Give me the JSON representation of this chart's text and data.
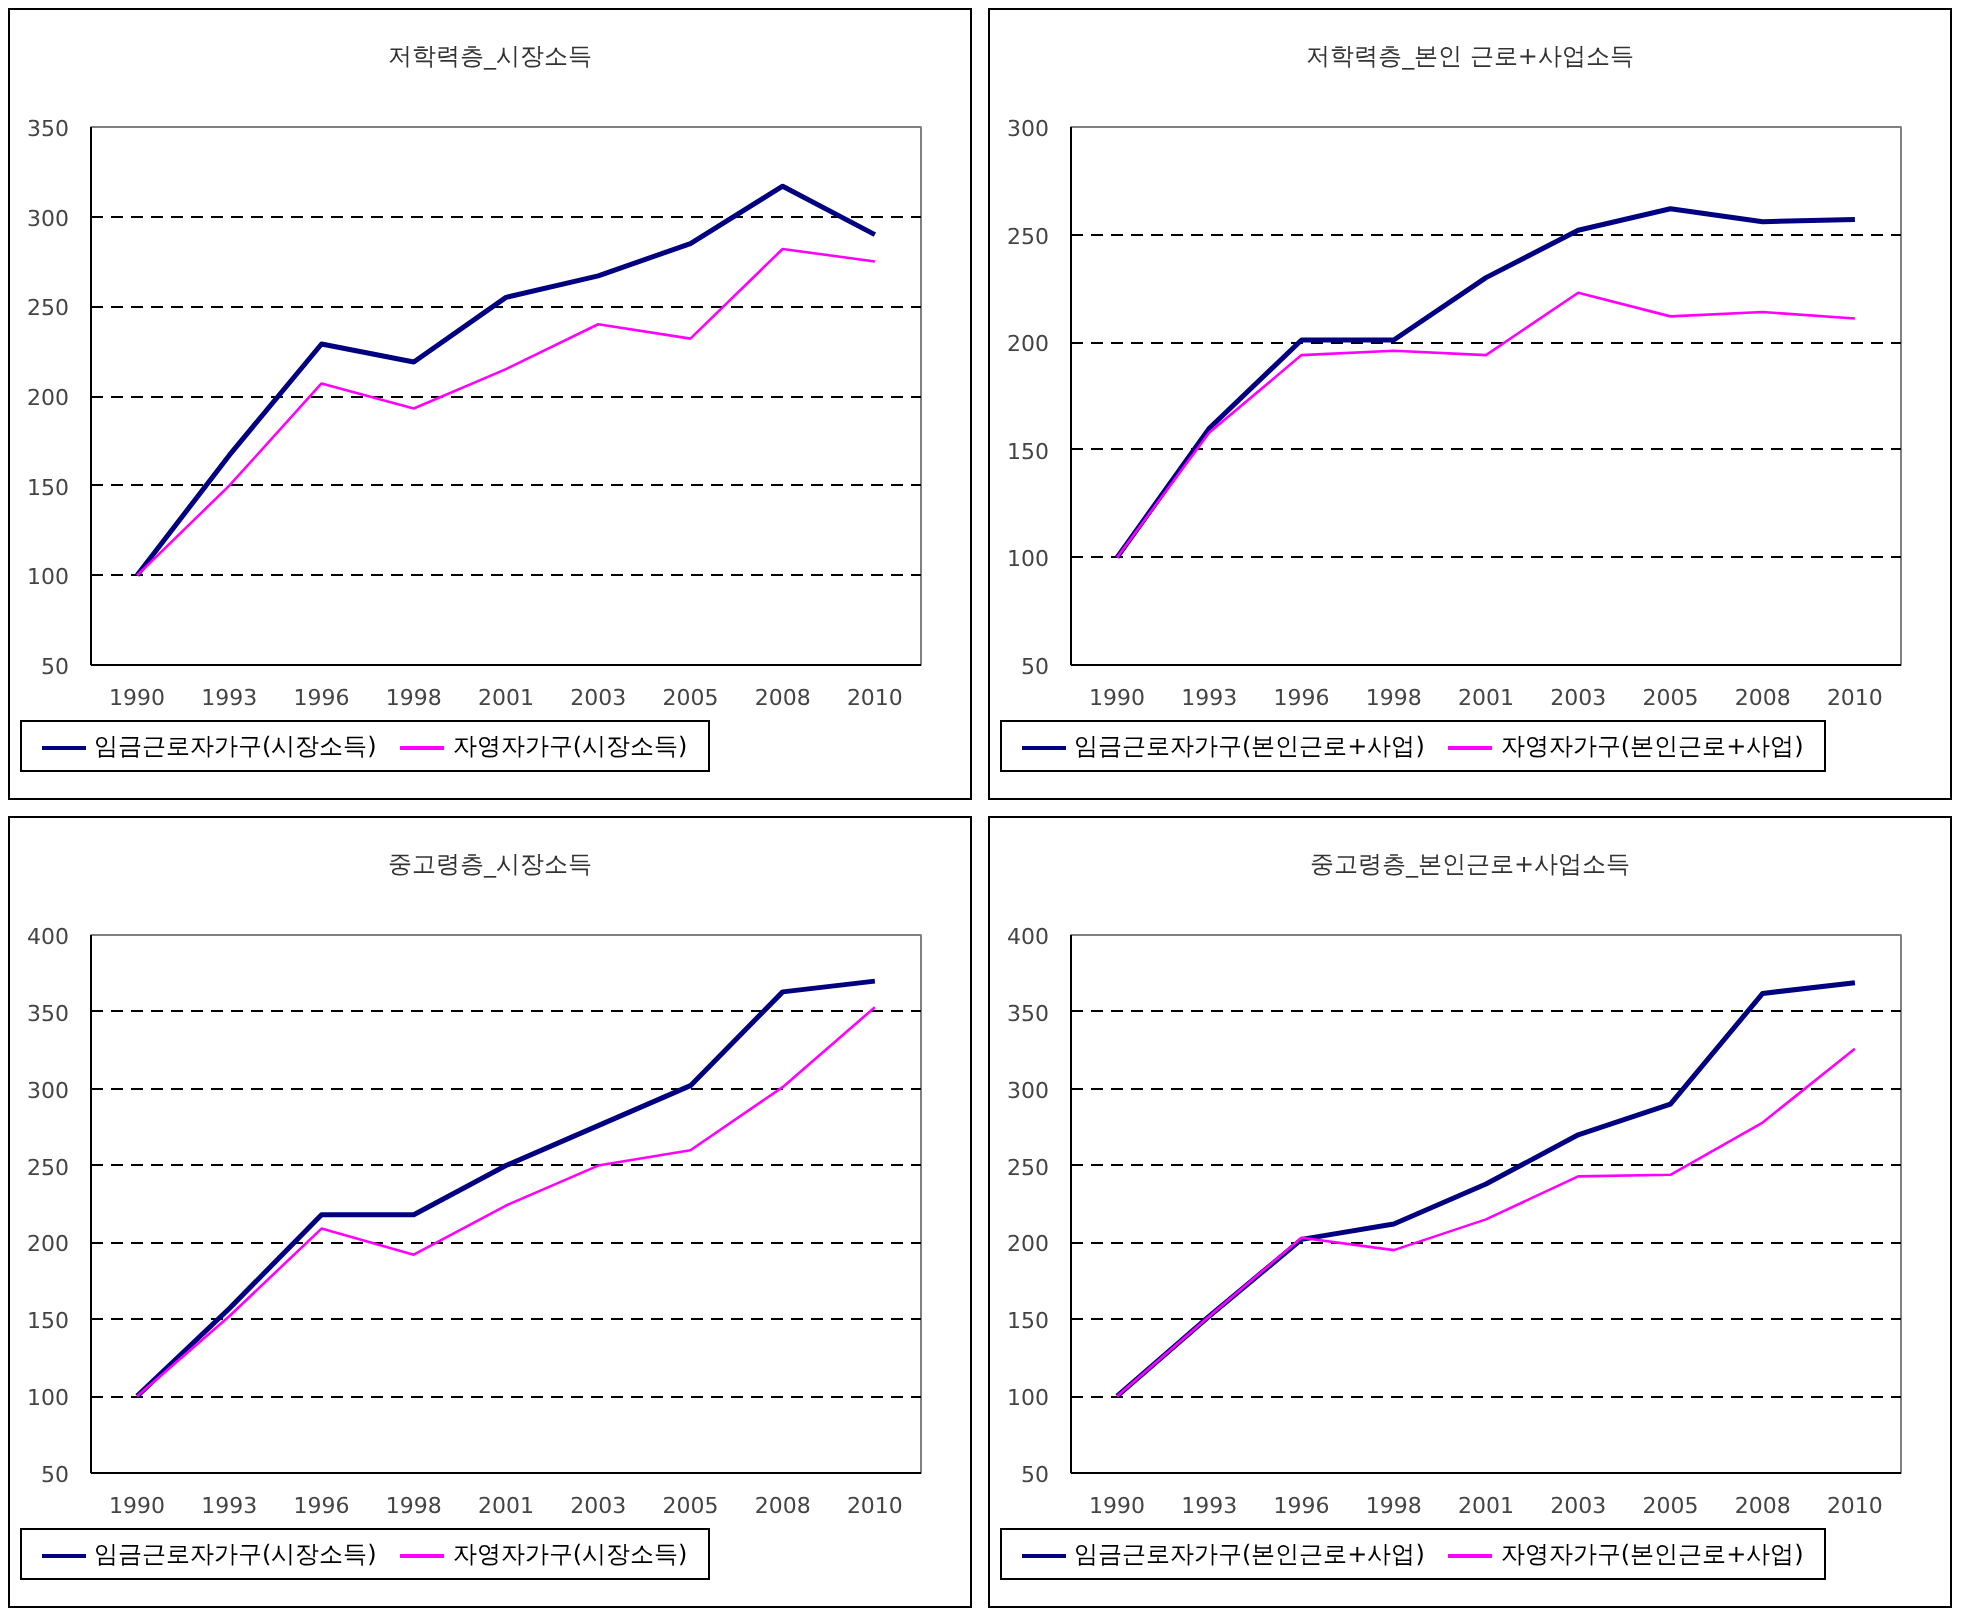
{
  "chart_data": [
    {
      "type": "line",
      "title": "저학력층_시장소득",
      "categories": [
        "1990",
        "1993",
        "1996",
        "1998",
        "2001",
        "2003",
        "2005",
        "2008",
        "2010"
      ],
      "ylim": [
        50,
        350
      ],
      "yticks": [
        50,
        100,
        150,
        200,
        250,
        300,
        350
      ],
      "grid": "y",
      "legend": "bottom",
      "series": [
        {
          "name": "임금근로자가구(시장소득)",
          "color": "#000080",
          "values": [
            100,
            167,
            229,
            219,
            255,
            267,
            285,
            317,
            290
          ]
        },
        {
          "name": "자영자가구(시장소득)",
          "color": "#ff00ff",
          "values": [
            100,
            150,
            207,
            193,
            215,
            240,
            232,
            282,
            275
          ]
        }
      ]
    },
    {
      "type": "line",
      "title": "저학력층_본인 근로+사업소득",
      "categories": [
        "1990",
        "1993",
        "1996",
        "1998",
        "2001",
        "2003",
        "2005",
        "2008",
        "2010"
      ],
      "ylim": [
        50,
        300
      ],
      "yticks": [
        50,
        100,
        150,
        200,
        250,
        300
      ],
      "grid": "y",
      "legend": "bottom",
      "series": [
        {
          "name": "임금근로자가구(본인근로+사업)",
          "color": "#000080",
          "values": [
            100,
            160,
            201,
            201,
            230,
            252,
            262,
            256,
            257
          ]
        },
        {
          "name": "자영자가구(본인근로+사업)",
          "color": "#ff00ff",
          "values": [
            100,
            158,
            194,
            196,
            194,
            223,
            212,
            214,
            211
          ]
        }
      ]
    },
    {
      "type": "line",
      "title": "중고령층_시장소득",
      "categories": [
        "1990",
        "1993",
        "1996",
        "1998",
        "2001",
        "2003",
        "2005",
        "2008",
        "2010"
      ],
      "ylim": [
        50,
        400
      ],
      "yticks": [
        50,
        100,
        150,
        200,
        250,
        300,
        350,
        400
      ],
      "grid": "y",
      "legend": "bottom",
      "series": [
        {
          "name": "임금근로자가구(시장소득)",
          "color": "#000080",
          "values": [
            100,
            157,
            218,
            218,
            250,
            276,
            302,
            363,
            370
          ]
        },
        {
          "name": "자영자가구(시장소득)",
          "color": "#ff00ff",
          "values": [
            100,
            152,
            209,
            192,
            224,
            250,
            260,
            301,
            353
          ]
        }
      ]
    },
    {
      "type": "line",
      "title": "중고령층_본인근로+사업소득",
      "categories": [
        "1990",
        "1993",
        "1996",
        "1998",
        "2001",
        "2003",
        "2005",
        "2008",
        "2010"
      ],
      "ylim": [
        50,
        400
      ],
      "yticks": [
        50,
        100,
        150,
        200,
        250,
        300,
        350,
        400
      ],
      "grid": "y",
      "legend": "bottom",
      "series": [
        {
          "name": "임금근로자가구(본인근로+사업)",
          "color": "#000080",
          "values": [
            100,
            152,
            202,
            212,
            238,
            270,
            290,
            362,
            369
          ]
        },
        {
          "name": "자영자가구(본인근로+사업)",
          "color": "#ff00ff",
          "values": [
            100,
            152,
            203,
            195,
            215,
            243,
            244,
            278,
            326
          ]
        }
      ]
    }
  ]
}
